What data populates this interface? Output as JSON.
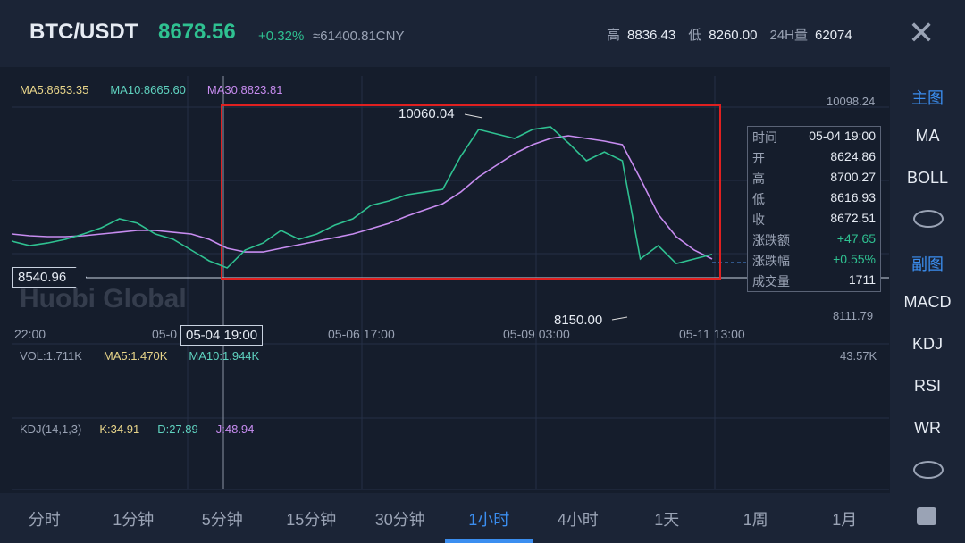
{
  "header": {
    "pair": "BTC/USDT",
    "price": "8678.56",
    "change": "+0.32%",
    "cny": "≈61400.81CNY",
    "stats": [
      {
        "label": "高",
        "value": "8836.43"
      },
      {
        "label": "低",
        "value": "8260.00"
      },
      {
        "label": "24H量",
        "value": "62074"
      }
    ]
  },
  "main_chart": {
    "ma_labels": [
      "MA5:8653.35",
      "MA10:8665.60",
      "MA30:8823.81"
    ],
    "axis_top": "10098.24",
    "axis_bottom": "8111.79",
    "ylim": [
      8111.79,
      10098.24
    ],
    "high_label": "10060.04",
    "low_label": "8150.00",
    "crosshair_price": "8540.96",
    "crosshair_time": "05-04 19:00",
    "watermark": "Huobi Global",
    "x_labels": [
      "22:00",
      "05-0",
      "05-06 17:00",
      "05-09 03:00",
      "05-11 13:00"
    ],
    "close": [
      8793,
      8752,
      8776,
      8810,
      8860,
      8918,
      9001,
      8960,
      8860,
      8810,
      8710,
      8610,
      8544,
      8710,
      8776,
      8893,
      8810,
      8860,
      8943,
      9001,
      9126,
      9167,
      9225,
      9250,
      9275,
      9583,
      9832,
      9791,
      9749,
      9832,
      9857,
      9707,
      9541,
      9624,
      9541,
      8627,
      8752,
      8585,
      8627,
      8670
    ],
    "ma30": [
      8860,
      8843,
      8835,
      8835,
      8843,
      8860,
      8876,
      8893,
      8893,
      8876,
      8860,
      8810,
      8727,
      8693,
      8693,
      8727,
      8760,
      8793,
      8826,
      8860,
      8909,
      8959,
      9026,
      9084,
      9142,
      9250,
      9392,
      9500,
      9608,
      9691,
      9749,
      9774,
      9749,
      9724,
      9691,
      9375,
      9042,
      8835,
      8710,
      8627
    ],
    "info": [
      [
        "时间",
        "05-04 19:00"
      ],
      [
        "开",
        "8624.86"
      ],
      [
        "高",
        "8700.27"
      ],
      [
        "低",
        "8616.93"
      ],
      [
        "收",
        "8672.51"
      ],
      [
        "涨跌额",
        "+47.65"
      ],
      [
        "涨跌幅",
        "+0.55%"
      ],
      [
        "成交量",
        "1711"
      ]
    ]
  },
  "volume_panel": {
    "labels": [
      "VOL:1.711K",
      "MA5:1.470K",
      "MA10:1.944K"
    ],
    "axis_top": "43.57K"
  },
  "kdj_panel": {
    "labels": [
      "KDJ(14,1,3)",
      "K:34.91",
      "D:27.89",
      "J:48.94"
    ]
  },
  "tabs": {
    "items": [
      "分时",
      "1分钟",
      "5分钟",
      "15分钟",
      "30分钟",
      "1小时",
      "4小时",
      "1天",
      "1周",
      "1月"
    ],
    "active": 5
  },
  "sidebar": {
    "main": "主图",
    "main_items": [
      "MA",
      "BOLL"
    ],
    "sub": "副图",
    "sub_items": [
      "MACD",
      "KDJ",
      "RSI",
      "WR"
    ]
  }
}
